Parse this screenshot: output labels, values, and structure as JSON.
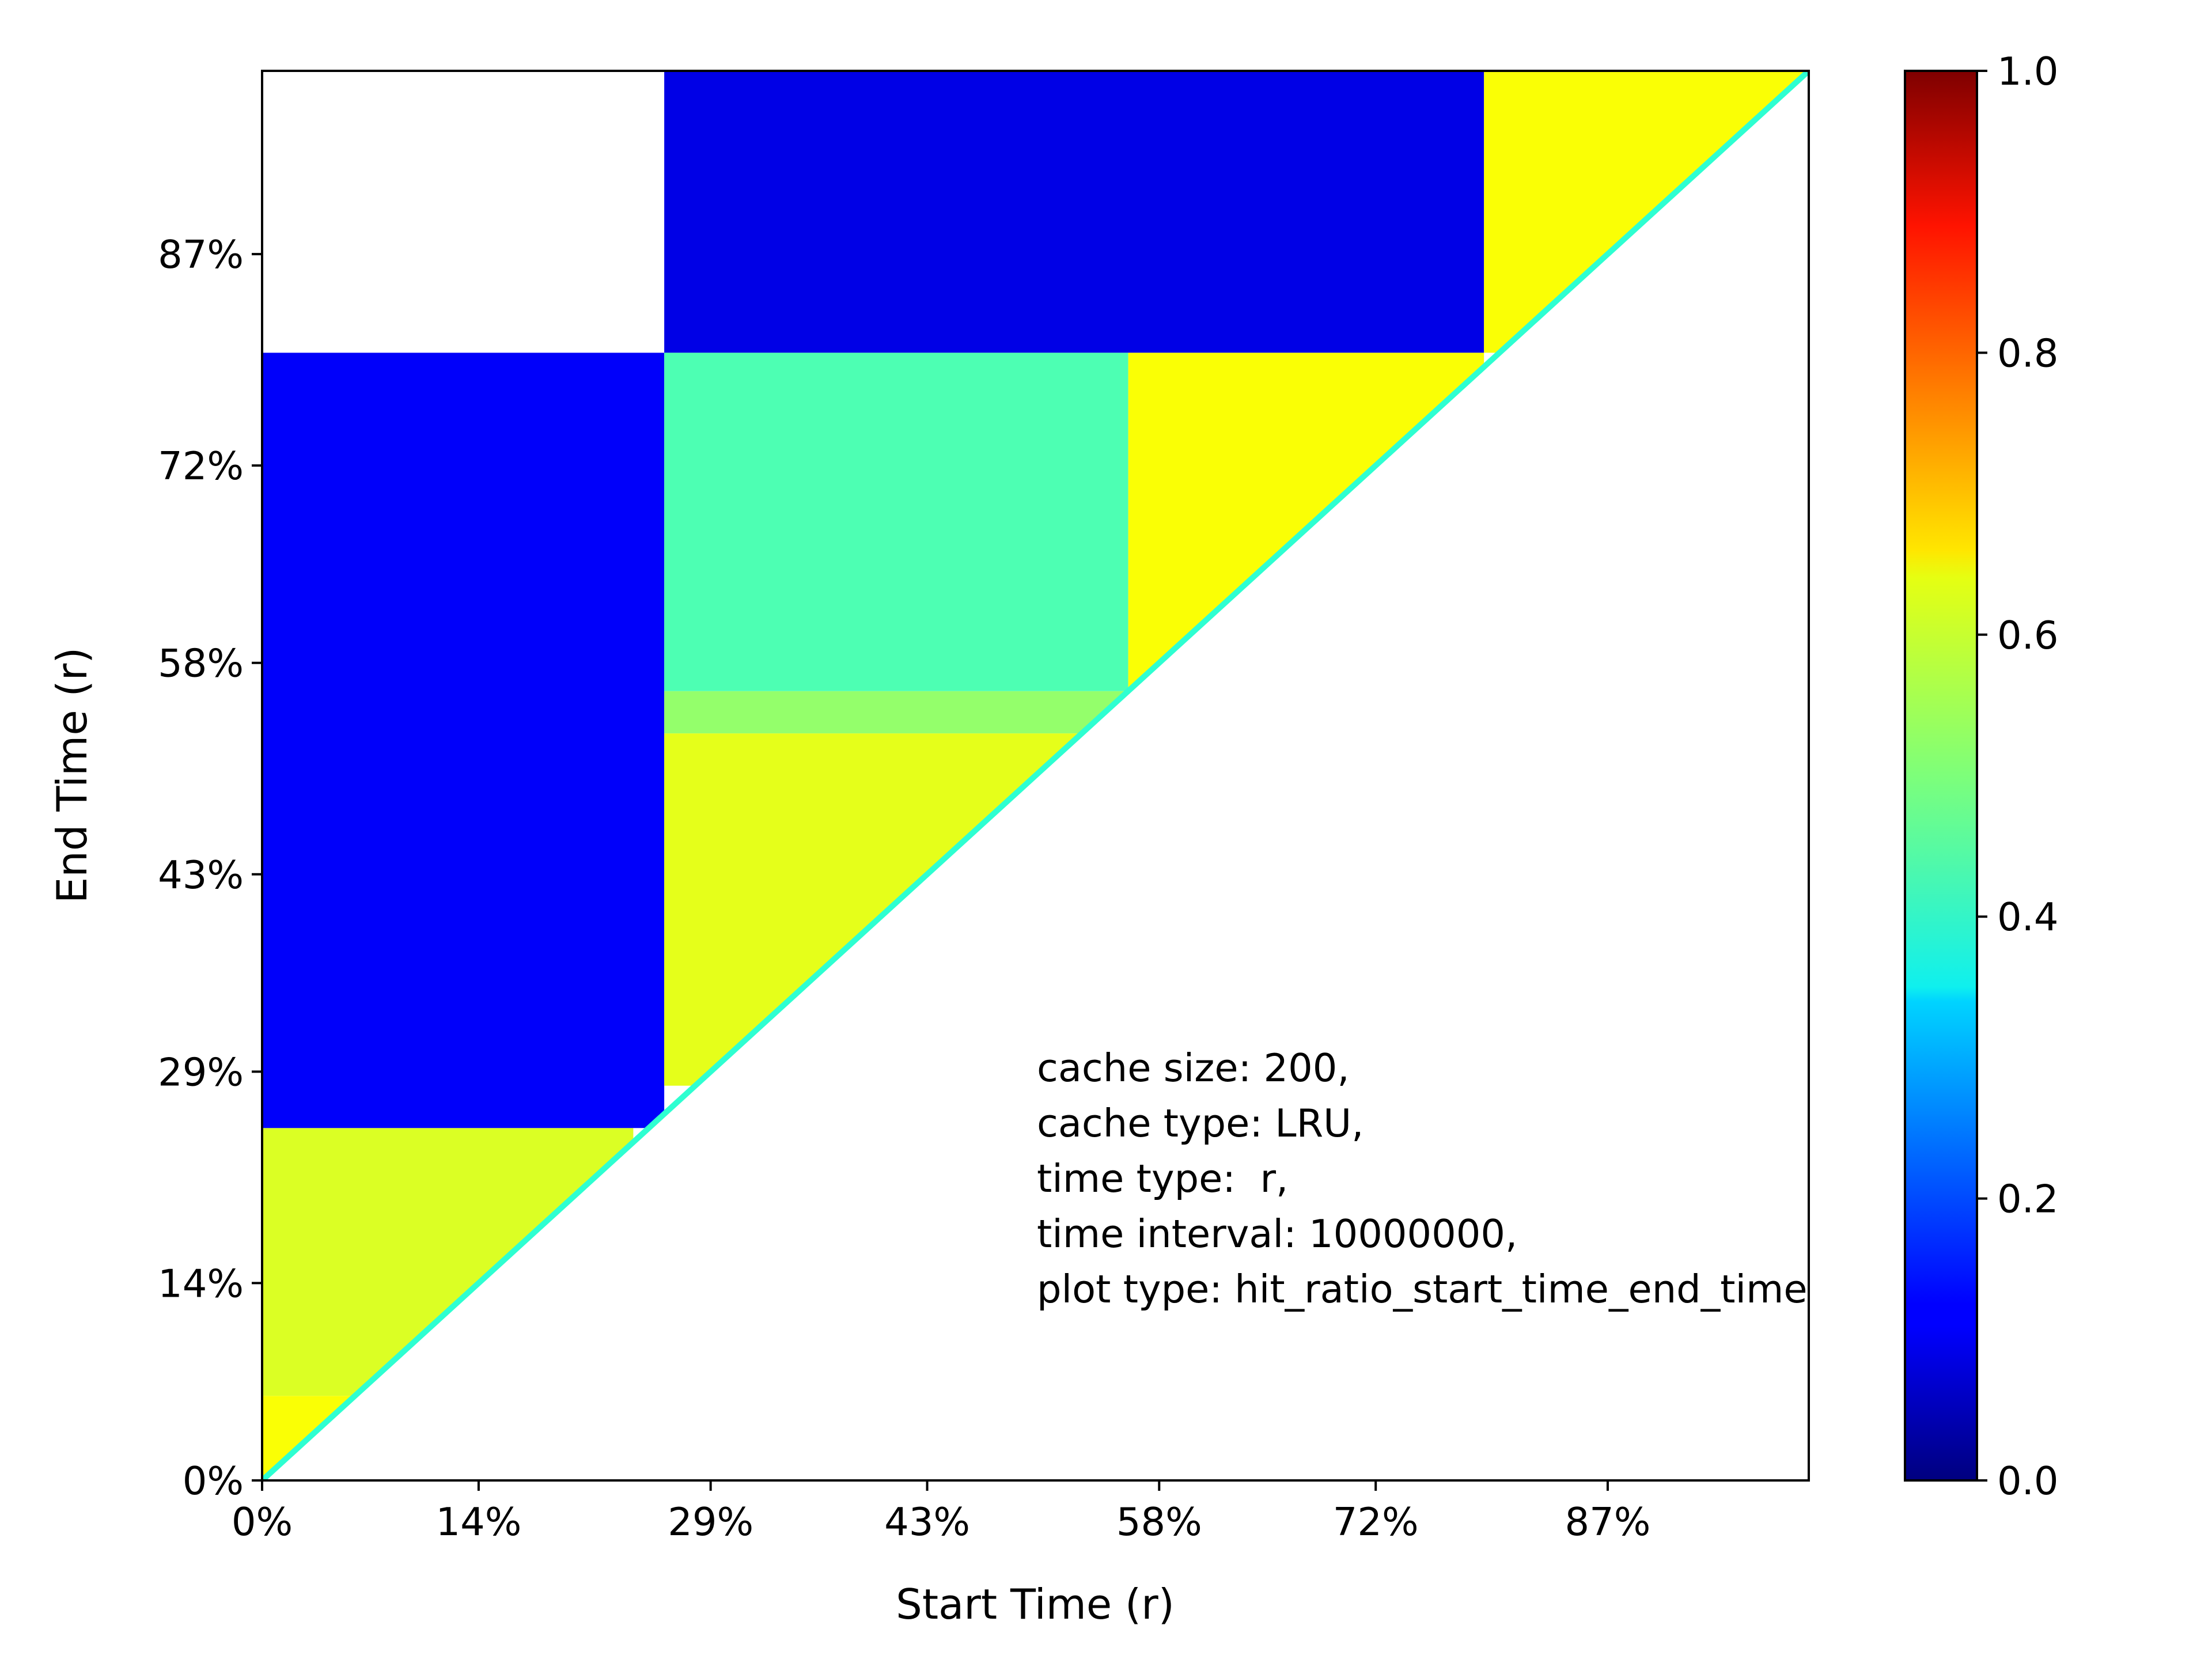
{
  "chart_data": {
    "type": "heatmap",
    "title": "",
    "xlabel": "Start Time (r)",
    "ylabel": "End Time (r)",
    "x_ticks": [
      "0%",
      "14%",
      "29%",
      "43%",
      "58%",
      "72%",
      "87%"
    ],
    "y_ticks": [
      "0%",
      "14%",
      "29%",
      "43%",
      "58%",
      "72%",
      "87%"
    ],
    "x_tick_values": [
      0,
      14,
      29,
      43,
      58,
      72,
      87
    ],
    "y_tick_values": [
      0,
      14,
      29,
      43,
      58,
      72,
      87
    ],
    "xlim": [
      0,
      100
    ],
    "ylim": [
      0,
      100
    ],
    "colormap": "jet",
    "colorbar": {
      "range": [
        0,
        1
      ],
      "ticks": [
        "0.0",
        "0.2",
        "0.4",
        "0.6",
        "0.8",
        "1.0"
      ],
      "tick_values": [
        0,
        0.2,
        0.4,
        0.6,
        0.8,
        1.0
      ]
    },
    "annotation": [
      "cache size: 200,",
      "cache type: LRU,",
      "time type:  r,",
      "time interval: 10000000,",
      "plot type: hit_ratio_start_time_end_time"
    ],
    "regions": [
      {
        "x": [
          0,
          24
        ],
        "y": [
          0,
          6
        ],
        "value": 0.62
      },
      {
        "x": [
          0,
          24
        ],
        "y": [
          6,
          25
        ],
        "value": 0.59
      },
      {
        "x": [
          0,
          26
        ],
        "y": [
          25,
          80
        ],
        "value": 0.12
      },
      {
        "x": [
          26,
          79
        ],
        "y": [
          80,
          100
        ],
        "value": 0.1
      },
      {
        "x": [
          26,
          53
        ],
        "y": [
          28,
          53
        ],
        "value": 0.6
      },
      {
        "x": [
          26,
          56
        ],
        "y": [
          53,
          56
        ],
        "value": 0.52
      },
      {
        "x": [
          26,
          56
        ],
        "y": [
          56,
          80
        ],
        "value": 0.45
      },
      {
        "x": [
          56,
          79
        ],
        "y": [
          56,
          80
        ],
        "value": 0.62
      },
      {
        "x": [
          79,
          100
        ],
        "y": [
          80,
          100
        ],
        "value": 0.62
      }
    ]
  }
}
